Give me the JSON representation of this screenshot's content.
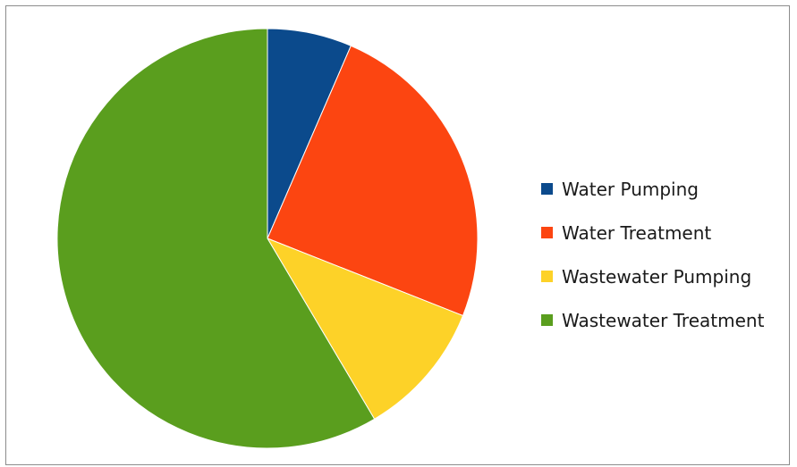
{
  "chart_data": {
    "type": "pie",
    "title": "",
    "categories": [
      "Water Pumping",
      "Water Treatment",
      "Wastewater Pumping",
      "Wastewater Treatment"
    ],
    "values": [
      6.5,
      24.5,
      10.5,
      58.5
    ],
    "colors": [
      "#0b4a8c",
      "#fc4511",
      "#fdd228",
      "#5a9e1e"
    ],
    "start_angle": "12 o'clock",
    "direction": "clockwise",
    "legend_position": "right"
  }
}
